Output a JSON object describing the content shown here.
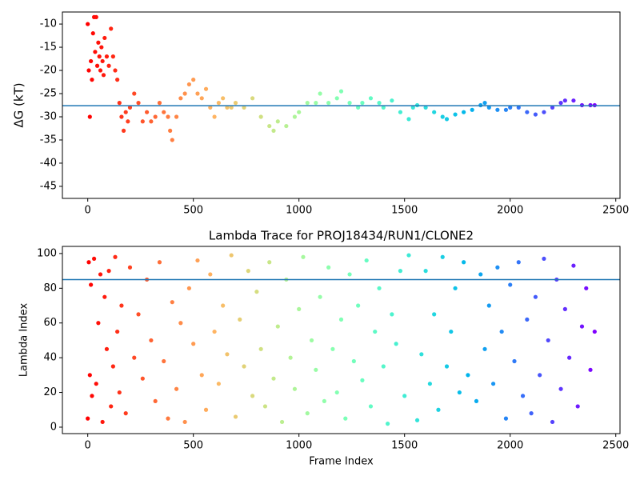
{
  "chart_data": [
    {
      "type": "scatter",
      "ylabel": "ΔG (kT)",
      "colormap": "rainbow_r",
      "x": [
        0,
        5,
        10,
        15,
        20,
        25,
        30,
        35,
        40,
        45,
        50,
        55,
        60,
        65,
        70,
        75,
        80,
        90,
        100,
        110,
        120,
        130,
        140,
        150,
        160,
        170,
        180,
        190,
        200,
        220,
        240,
        260,
        280,
        300,
        320,
        340,
        360,
        380,
        390,
        400,
        420,
        440,
        460,
        480,
        500,
        520,
        540,
        560,
        580,
        600,
        620,
        640,
        660,
        680,
        700,
        740,
        780,
        820,
        860,
        880,
        900,
        940,
        980,
        1000,
        1040,
        1080,
        1100,
        1140,
        1180,
        1200,
        1240,
        1280,
        1300,
        1340,
        1380,
        1400,
        1440,
        1480,
        1520,
        1540,
        1560,
        1600,
        1640,
        1680,
        1700,
        1740,
        1780,
        1820,
        1860,
        1880,
        1900,
        1940,
        1980,
        2000,
        2040,
        2080,
        2120,
        2160,
        2200,
        2240,
        2260,
        2300,
        2340,
        2380,
        2400
      ],
      "values": [
        -10,
        -20,
        -30,
        -18,
        -22,
        -12,
        -8.5,
        -16,
        -8.5,
        -19,
        -14,
        -17,
        -20,
        -15,
        -18,
        -21,
        -13,
        -17,
        -19,
        -11,
        -17,
        -20,
        -22,
        -27,
        -30,
        -33,
        -29,
        -31,
        -28,
        -25,
        -27,
        -31,
        -29,
        -31,
        -30,
        -27,
        -29,
        -30,
        -33,
        -35,
        -30,
        -26,
        -25,
        -23,
        -22,
        -25,
        -26,
        -24,
        -28,
        -30,
        -27,
        -26,
        -28,
        -28,
        -27,
        -28,
        -26,
        -30,
        -32,
        -33,
        -31,
        -32,
        -30,
        -29,
        -27,
        -27,
        -25,
        -27,
        -26,
        -24.5,
        -27,
        -28,
        -27,
        -26,
        -27,
        -28,
        -26.5,
        -29,
        -30.5,
        -28,
        -27.5,
        -28,
        -29,
        -30,
        -30.5,
        -29.5,
        -29,
        -28.5,
        -27.5,
        -27,
        -28,
        -28.5,
        -28.5,
        -28,
        -28,
        -29,
        -29.5,
        -29,
        -28,
        -27,
        -26.5,
        -26.5,
        -27.5,
        -27.5,
        -27.5
      ],
      "hline": -27.6,
      "hline_color": "#1f77b4",
      "xlim": [
        -120,
        2520
      ],
      "xticks": [
        0,
        500,
        1000,
        1500,
        2000,
        2500
      ],
      "ylim": [
        -47.6,
        -7.4
      ],
      "yticks": [
        -45,
        -40,
        -35,
        -30,
        -25,
        -20,
        -15,
        -10
      ]
    },
    {
      "type": "scatter",
      "title": "Lambda Trace for PROJ18434/RUN1/CLONE2",
      "xlabel": "Frame Index",
      "ylabel": "Lambda Index",
      "colormap": "rainbow_r",
      "x": [
        0,
        5,
        10,
        15,
        20,
        30,
        40,
        50,
        60,
        70,
        80,
        90,
        100,
        110,
        120,
        130,
        140,
        150,
        160,
        180,
        200,
        220,
        240,
        260,
        280,
        300,
        320,
        340,
        360,
        380,
        400,
        420,
        440,
        460,
        480,
        500,
        520,
        540,
        560,
        580,
        600,
        620,
        640,
        660,
        680,
        700,
        720,
        740,
        760,
        780,
        800,
        820,
        840,
        860,
        880,
        900,
        920,
        940,
        960,
        980,
        1000,
        1020,
        1040,
        1060,
        1080,
        1100,
        1120,
        1140,
        1160,
        1180,
        1200,
        1220,
        1240,
        1260,
        1280,
        1300,
        1320,
        1340,
        1360,
        1380,
        1400,
        1420,
        1440,
        1460,
        1480,
        1500,
        1520,
        1560,
        1580,
        1600,
        1620,
        1640,
        1660,
        1680,
        1700,
        1720,
        1740,
        1760,
        1780,
        1800,
        1840,
        1860,
        1880,
        1900,
        1920,
        1940,
        1960,
        1980,
        2000,
        2020,
        2040,
        2060,
        2080,
        2100,
        2120,
        2140,
        2160,
        2180,
        2200,
        2220,
        2240,
        2260,
        2280,
        2300,
        2320,
        2340,
        2360,
        2380,
        2400
      ],
      "values": [
        5,
        95,
        30,
        82,
        18,
        97,
        25,
        60,
        88,
        3,
        75,
        45,
        90,
        12,
        35,
        98,
        55,
        20,
        70,
        8,
        92,
        40,
        65,
        28,
        85,
        50,
        15,
        95,
        38,
        5,
        72,
        22,
        60,
        3,
        80,
        48,
        96,
        30,
        10,
        88,
        55,
        25,
        70,
        42,
        99,
        6,
        62,
        35,
        90,
        18,
        78,
        45,
        12,
        95,
        28,
        58,
        3,
        85,
        40,
        22,
        68,
        98,
        8,
        50,
        33,
        75,
        15,
        92,
        45,
        20,
        62,
        5,
        88,
        38,
        70,
        27,
        96,
        12,
        55,
        80,
        35,
        2,
        65,
        48,
        90,
        18,
        99,
        4,
        42,
        90,
        25,
        65,
        10,
        98,
        35,
        55,
        80,
        20,
        95,
        30,
        15,
        88,
        45,
        70,
        25,
        92,
        55,
        5,
        82,
        38,
        95,
        18,
        62,
        8,
        75,
        30,
        97,
        50,
        3,
        85,
        22,
        68,
        40,
        93,
        12,
        58,
        80,
        33,
        55
      ],
      "hline": 85,
      "hline_color": "#1f77b4",
      "xlim": [
        -120,
        2520
      ],
      "xticks": [
        0,
        500,
        1000,
        1500,
        2000,
        2500
      ],
      "ylim": [
        -3.7,
        104.1
      ],
      "yticks": [
        0,
        20,
        40,
        60,
        80,
        100
      ]
    }
  ]
}
